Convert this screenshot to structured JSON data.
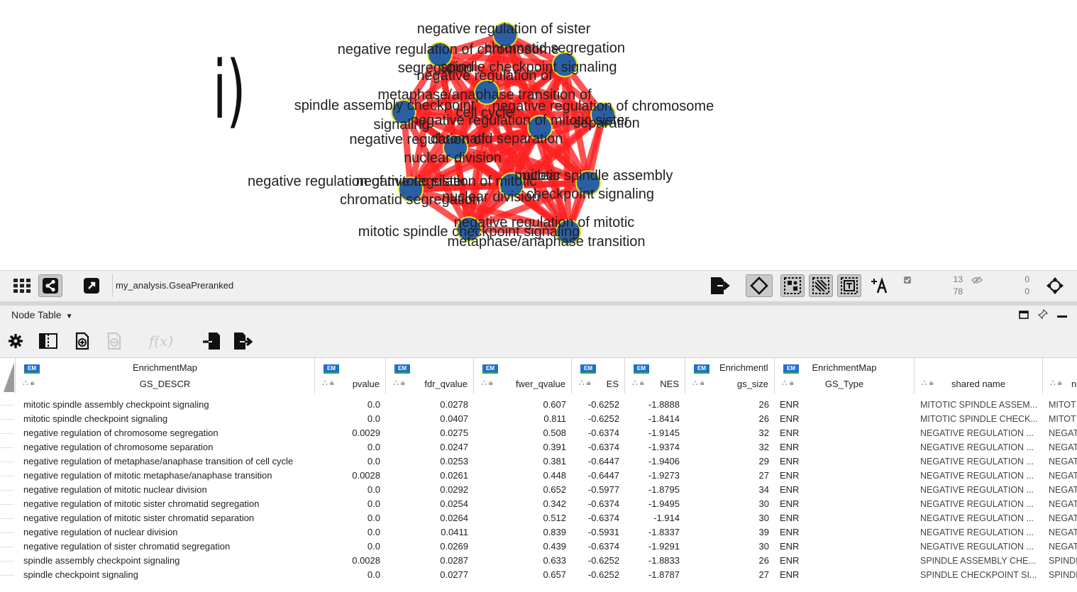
{
  "panel_label": "i)",
  "network": {
    "node_color": "#2a5fa3",
    "node_border": "#e6e61a",
    "edge_color": "#ff2020",
    "labels": [
      "negative regulation of sister",
      "chromatid segregation",
      "negative regulation of chromosome",
      "segregation",
      "spindle checkpoint signaling",
      "negative regulation of",
      "metaphase/anaphase transition of",
      "cell cycle",
      "spindle assembly checkpoint",
      "signaling",
      "negative regulation of chromosome",
      "separation",
      "negative regulation of mitotic sister",
      "chromatid separation",
      "negative regulation of",
      "nuclear division",
      "negative regulation of mitotic",
      "nuclear",
      "negative regulation of mitotic sister",
      "chromatid segregation",
      "nuclear division",
      "mitotic spindle assembly",
      "checkpoint signaling",
      "negative regulation of mitotic",
      "metaphase/anaphase transition",
      "mitotic spindle checkpoint signaling"
    ]
  },
  "toolbar": {
    "network_title": "my_analysis.GseaPreranked",
    "selected_nodes": "13",
    "total_nodes": "78",
    "hidden_top": "0",
    "hidden_bottom": "0"
  },
  "table_panel": {
    "title": "Node Table"
  },
  "table": {
    "columns": [
      {
        "top": "EnrichmentMap",
        "bottom": "GS_DESCR"
      },
      {
        "top": "",
        "bottom": "pvalue"
      },
      {
        "top": "",
        "bottom": "fdr_qvalue"
      },
      {
        "top": "",
        "bottom": "fwer_qvalue"
      },
      {
        "top": "",
        "bottom": "ES"
      },
      {
        "top": "",
        "bottom": "NES"
      },
      {
        "top": "Enrichmentl",
        "bottom": "gs_size"
      },
      {
        "top": "EnrichmentMap",
        "bottom": "GS_Type"
      },
      {
        "top": "",
        "bottom": "shared name"
      },
      {
        "top": "",
        "bottom": "n"
      }
    ],
    "rows": [
      [
        "mitotic spindle assembly checkpoint signaling",
        "0.0",
        "0.0278",
        "0.607",
        "-0.6252",
        "-1.8888",
        "26",
        "ENR",
        "MITOTIC SPINDLE ASSEM...",
        "MITOT"
      ],
      [
        "mitotic spindle checkpoint signaling",
        "0.0",
        "0.0407",
        "0.811",
        "-0.6252",
        "-1.8414",
        "26",
        "ENR",
        "MITOTIC SPINDLE CHECK...",
        "MITOT"
      ],
      [
        "negative regulation of chromosome segregation",
        "0.0029",
        "0.0275",
        "0.508",
        "-0.6374",
        "-1.9145",
        "32",
        "ENR",
        "NEGATIVE REGULATION ...",
        "NEGAT"
      ],
      [
        "negative regulation of chromosome separation",
        "0.0",
        "0.0247",
        "0.391",
        "-0.6374",
        "-1.9374",
        "32",
        "ENR",
        "NEGATIVE REGULATION ...",
        "NEGAT"
      ],
      [
        "negative regulation of metaphase/anaphase transition of cell cycle",
        "0.0",
        "0.0253",
        "0.381",
        "-0.6447",
        "-1.9406",
        "29",
        "ENR",
        "NEGATIVE REGULATION ...",
        "NEGAT"
      ],
      [
        "negative regulation of mitotic metaphase/anaphase transition",
        "0.0028",
        "0.0261",
        "0.448",
        "-0.6447",
        "-1.9273",
        "27",
        "ENR",
        "NEGATIVE REGULATION ...",
        "NEGAT"
      ],
      [
        "negative regulation of mitotic nuclear division",
        "0.0",
        "0.0292",
        "0.652",
        "-0.5977",
        "-1.8795",
        "34",
        "ENR",
        "NEGATIVE REGULATION ...",
        "NEGAT"
      ],
      [
        "negative regulation of mitotic sister chromatid segregation",
        "0.0",
        "0.0254",
        "0.342",
        "-0.6374",
        "-1.9495",
        "30",
        "ENR",
        "NEGATIVE REGULATION ...",
        "NEGAT"
      ],
      [
        "negative regulation of mitotic sister chromatid separation",
        "0.0",
        "0.0264",
        "0.512",
        "-0.6374",
        "-1.914",
        "30",
        "ENR",
        "NEGATIVE REGULATION ...",
        "NEGAT"
      ],
      [
        "negative regulation of nuclear division",
        "0.0",
        "0.0411",
        "0.839",
        "-0.5931",
        "-1.8337",
        "39",
        "ENR",
        "NEGATIVE REGULATION ...",
        "NEGAT"
      ],
      [
        "negative regulation of sister chromatid segregation",
        "0.0",
        "0.0269",
        "0.439",
        "-0.6374",
        "-1.9291",
        "30",
        "ENR",
        "NEGATIVE REGULATION ...",
        "NEGAT"
      ],
      [
        "spindle assembly checkpoint signaling",
        "0.0028",
        "0.0287",
        "0.633",
        "-0.6252",
        "-1.8833",
        "26",
        "ENR",
        "SPINDLE ASSEMBLY CHE...",
        "SPINDL"
      ],
      [
        "spindle checkpoint signaling",
        "0.0",
        "0.0277",
        "0.657",
        "-0.6252",
        "-1.8787",
        "27",
        "ENR",
        "SPINDLE CHECKPOINT SI...",
        "SPINDL"
      ]
    ]
  }
}
